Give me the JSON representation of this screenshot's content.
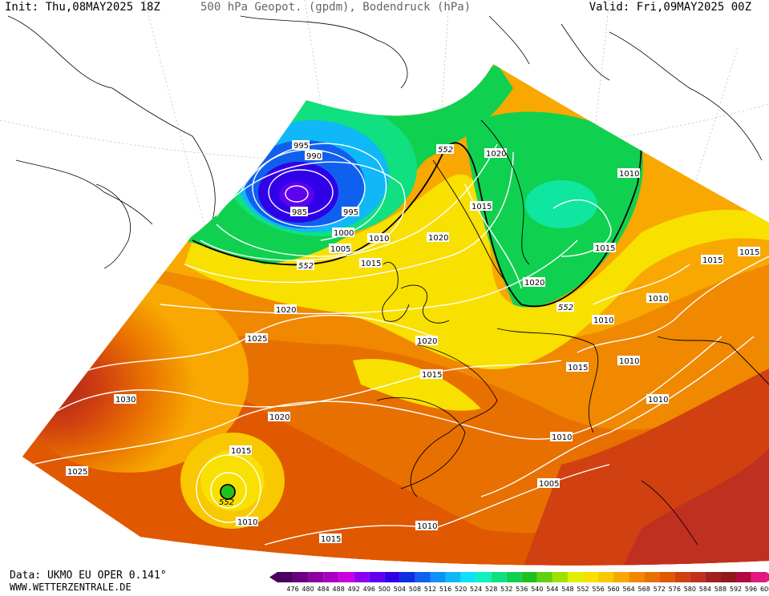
{
  "header": {
    "init": "Init: Thu,08MAY2025 18Z",
    "title": "500 hPa Geopot. (gpdm), Bodendruck (hPa)",
    "valid": "Valid: Fri,09MAY2025 00Z"
  },
  "footer": {
    "source": "Data: UKMO EU OPER 0.141°",
    "site": "WWW.WETTERZENTRALE.DE"
  },
  "legend": {
    "values": [
      "476",
      "480",
      "484",
      "488",
      "492",
      "496",
      "500",
      "504",
      "508",
      "512",
      "516",
      "520",
      "524",
      "528",
      "532",
      "536",
      "540",
      "544",
      "548",
      "552",
      "556",
      "560",
      "564",
      "568",
      "572",
      "576",
      "580",
      "584",
      "588",
      "592",
      "596",
      "600"
    ],
    "colors": [
      "#4b0060",
      "#6a0080",
      "#8a00a0",
      "#a800c0",
      "#c800e0",
      "#9000f0",
      "#6000f0",
      "#3000e8",
      "#1030e0",
      "#1060f0",
      "#1090f8",
      "#10b8f8",
      "#10e0f8",
      "#10f0c0",
      "#10e080",
      "#10d050",
      "#20c020",
      "#60d010",
      "#a0e000",
      "#e0f000",
      "#f8e000",
      "#f8c800",
      "#f8a800",
      "#f08800",
      "#e87000",
      "#e05800",
      "#d04010",
      "#c03020",
      "#a02020",
      "#901818",
      "#b00840",
      "#e01880"
    ]
  },
  "isobar_labels": [
    {
      "text": "995"
    },
    {
      "text": "990"
    },
    {
      "text": "985"
    },
    {
      "text": "995"
    },
    {
      "text": "1000"
    },
    {
      "text": "1005"
    },
    {
      "text": "552"
    },
    {
      "text": "1010"
    },
    {
      "text": "1015"
    },
    {
      "text": "1020"
    },
    {
      "text": "1010"
    },
    {
      "text": "552"
    },
    {
      "text": "1020"
    },
    {
      "text": "1015"
    },
    {
      "text": "1020"
    },
    {
      "text": "1015"
    },
    {
      "text": "1015"
    },
    {
      "text": "1015"
    },
    {
      "text": "1020"
    },
    {
      "text": "552"
    },
    {
      "text": "1010"
    },
    {
      "text": "1010"
    },
    {
      "text": "1025"
    },
    {
      "text": "1020"
    },
    {
      "text": "1015"
    },
    {
      "text": "1010"
    },
    {
      "text": "1015"
    },
    {
      "text": "1030"
    },
    {
      "text": "1020"
    },
    {
      "text": "1015"
    },
    {
      "text": "1010"
    },
    {
      "text": "1025"
    },
    {
      "text": "552"
    },
    {
      "text": "1010"
    },
    {
      "text": "1010"
    },
    {
      "text": "1005"
    },
    {
      "text": "1010"
    },
    {
      "text": "1015"
    }
  ]
}
